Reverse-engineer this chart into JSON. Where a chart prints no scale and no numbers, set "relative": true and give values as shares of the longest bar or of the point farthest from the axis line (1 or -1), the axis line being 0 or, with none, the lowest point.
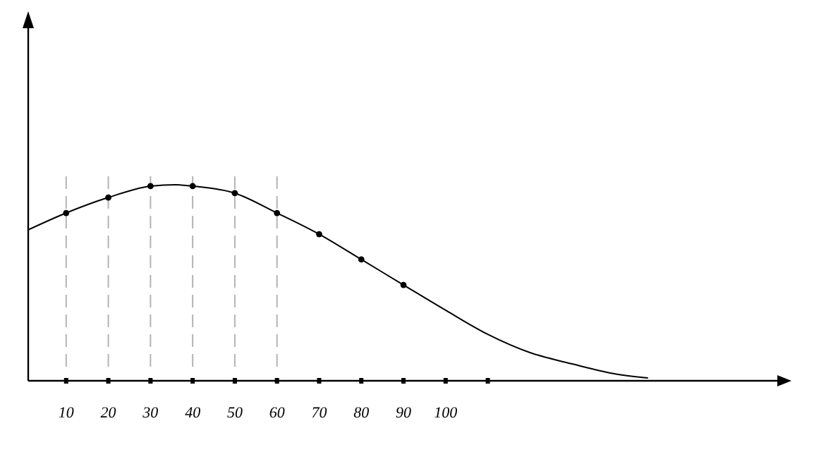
{
  "chart_data": {
    "type": "line",
    "relative": true,
    "xlim": [
      1,
      180
    ],
    "xticks": [
      10,
      20,
      30,
      40,
      50,
      60,
      70,
      80,
      90,
      100,
      {
        "value": 110,
        "label": null
      }
    ],
    "series": [
      {
        "color": "#000000",
        "marker": "none",
        "x": [
          1,
          10,
          20,
          30,
          36,
          40,
          50,
          60,
          70,
          80,
          90,
          100,
          110,
          120,
          130,
          140,
          148
        ],
        "values": [
          0.77,
          0.856,
          0.935,
          0.993,
          1,
          0.993,
          0.957,
          0.856,
          0.748,
          0.619,
          0.489,
          0.36,
          0.237,
          0.144,
          0.086,
          0.036,
          0.014
        ]
      },
      {
        "type": "scatter",
        "color": "#000000",
        "marker": "circle",
        "x": [
          10,
          20,
          30,
          40,
          50,
          60,
          70,
          80,
          90
        ],
        "values": [
          0.856,
          0.935,
          0.993,
          0.993,
          0.957,
          0.856,
          0.748,
          0.619,
          0.489
        ]
      }
    ],
    "ref_lines": [
      {
        "axis": "x",
        "value": 10,
        "color": "#b4b4b4",
        "line_style": "dashed"
      },
      {
        "axis": "x",
        "value": 20,
        "color": "#b4b4b4",
        "line_style": "dashed"
      },
      {
        "axis": "x",
        "value": 30,
        "color": "#b4b4b4",
        "line_style": "dashed"
      },
      {
        "axis": "x",
        "value": 40,
        "color": "#b4b4b4",
        "line_style": "dashed"
      },
      {
        "axis": "x",
        "value": 50,
        "color": "#b4b4b4",
        "line_style": "dashed"
      },
      {
        "axis": "x",
        "value": 60,
        "color": "#b4b4b4",
        "line_style": "dashed"
      }
    ]
  }
}
